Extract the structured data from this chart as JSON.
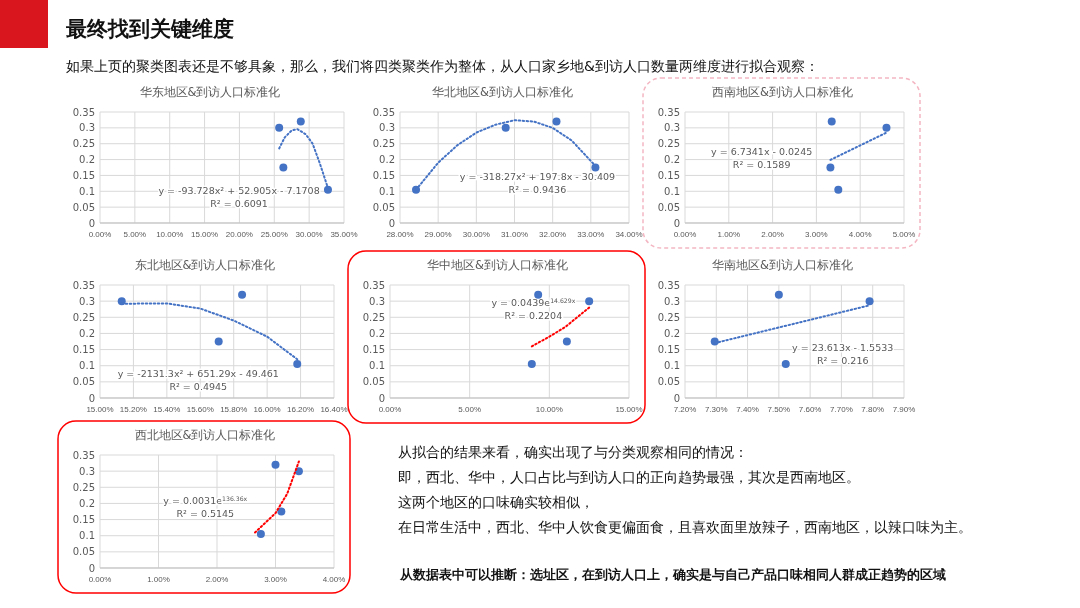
{
  "chart_data": [
    {
      "type": "other",
      "title": "最终找到关键维度",
      "subtitle": "如果上页的聚类图表还是不够具象，那么，我们将四类聚类作为整体，从人口家乡地&到访人口数量两维度进行拟合观察："
    },
    {
      "type": "scatter",
      "title": "华东地区&到访人口标准化",
      "grid": true,
      "series": [
        {
          "type": "scatter",
          "marker": "circle",
          "color": "#4472c4",
          "x": [
            25.7,
            26.3,
            28.8,
            32.7
          ],
          "values": [
            0.3,
            0.175,
            0.32,
            0.105
          ]
        },
        {
          "type": "line",
          "line_style": "dotted",
          "color": "#4472c4",
          "x": [
            25.7,
            26.5,
            27.5,
            28.3,
            29.5,
            30.5,
            31.5,
            32.7
          ],
          "values": [
            0.235,
            0.27,
            0.292,
            0.296,
            0.28,
            0.25,
            0.19,
            0.11
          ]
        }
      ],
      "xlim": [
        0,
        35
      ],
      "xticks": [
        {
          "value": 0,
          "label": "0.00%"
        },
        {
          "value": 5,
          "label": "5.00%"
        },
        {
          "value": 10,
          "label": "10.00%"
        },
        {
          "value": 15,
          "label": "15.00%"
        },
        {
          "value": 20,
          "label": "20.00%"
        },
        {
          "value": 25,
          "label": "25.00%"
        },
        {
          "value": 30,
          "label": "30.00%"
        },
        {
          "value": 35,
          "label": "35.00%"
        }
      ],
      "ylim": [
        0,
        0.35
      ],
      "yticks": [
        0,
        0.05,
        0.1,
        0.15,
        0.2,
        0.25,
        0.3,
        0.35
      ],
      "annotations": [
        "y = -93.728x² + 52.905x - 7.1708",
        "R² = 0.6091"
      ]
    },
    {
      "type": "scatter",
      "title": "华北地区&到访人口标准化",
      "grid": true,
      "series": [
        {
          "type": "scatter",
          "marker": "circle",
          "color": "#4472c4",
          "x": [
            28.42,
            30.77,
            32.1,
            33.12
          ],
          "values": [
            0.105,
            0.3,
            0.32,
            0.175
          ]
        },
        {
          "type": "line",
          "line_style": "dotted",
          "color": "#4472c4",
          "x": [
            28.42,
            29,
            29.5,
            30,
            30.5,
            31,
            31.5,
            32,
            32.5,
            33.12
          ],
          "values": [
            0.105,
            0.19,
            0.245,
            0.285,
            0.31,
            0.324,
            0.32,
            0.3,
            0.26,
            0.18
          ]
        }
      ],
      "xlim": [
        28,
        34
      ],
      "xticks": [
        {
          "value": 28,
          "label": "28.00%"
        },
        {
          "value": 29,
          "label": "29.00%"
        },
        {
          "value": 30,
          "label": "30.00%"
        },
        {
          "value": 31,
          "label": "31.00%"
        },
        {
          "value": 32,
          "label": "32.00%"
        },
        {
          "value": 33,
          "label": "33.00%"
        },
        {
          "value": 34,
          "label": "34.00%"
        }
      ],
      "ylim": [
        0,
        0.35
      ],
      "yticks": [
        0,
        0.05,
        0.1,
        0.15,
        0.2,
        0.25,
        0.3,
        0.35
      ],
      "annotations": [
        "y = -318.27x² + 197.8x - 30.409",
        "R² = 0.9436"
      ]
    },
    {
      "type": "scatter",
      "title": "西南地区&到访人口标准化",
      "grid": true,
      "series": [
        {
          "type": "scatter",
          "marker": "circle",
          "color": "#4472c4",
          "x": [
            3.35,
            3.32,
            3.5,
            4.6
          ],
          "values": [
            0.32,
            0.175,
            0.105,
            0.3
          ]
        },
        {
          "type": "line",
          "line_style": "dotted",
          "color": "#4472c4",
          "x": [
            3.32,
            4.6
          ],
          "values": [
            0.199,
            0.285
          ]
        }
      ],
      "xlim": [
        0,
        5
      ],
      "xticks": [
        {
          "value": 0,
          "label": "0.00%"
        },
        {
          "value": 1,
          "label": "1.00%"
        },
        {
          "value": 2,
          "label": "2.00%"
        },
        {
          "value": 3,
          "label": "3.00%"
        },
        {
          "value": 4,
          "label": "4.00%"
        },
        {
          "value": 5,
          "label": "5.00%"
        }
      ],
      "ylim": [
        0,
        0.35
      ],
      "yticks": [
        0,
        0.05,
        0.1,
        0.15,
        0.2,
        0.25,
        0.3,
        0.35
      ],
      "annotations": [
        "y = 6.7341x - 0.0245",
        "R² = 0.1589"
      ]
    },
    {
      "type": "scatter",
      "title": "东北地区&到访人口标准化",
      "grid": true,
      "series": [
        {
          "type": "scatter",
          "marker": "circle",
          "color": "#4472c4",
          "x": [
            15.13,
            15.71,
            15.85,
            16.18
          ],
          "values": [
            0.3,
            0.175,
            0.32,
            0.105
          ]
        },
        {
          "type": "line",
          "line_style": "dotted",
          "color": "#4472c4",
          "x": [
            15.13,
            15.4,
            15.6,
            15.8,
            16.0,
            16.18
          ],
          "values": [
            0.292,
            0.293,
            0.277,
            0.24,
            0.19,
            0.12
          ]
        }
      ],
      "xlim": [
        15,
        16.4
      ],
      "xticks": [
        {
          "value": 15,
          "label": "15.00%"
        },
        {
          "value": 15.2,
          "label": "15.20%"
        },
        {
          "value": 15.4,
          "label": "15.40%"
        },
        {
          "value": 15.6,
          "label": "15.60%"
        },
        {
          "value": 15.8,
          "label": "15.80%"
        },
        {
          "value": 16,
          "label": "16.00%"
        },
        {
          "value": 16.2,
          "label": "16.20%"
        },
        {
          "value": 16.4,
          "label": "16.40%"
        }
      ],
      "ylim": [
        0,
        0.35
      ],
      "yticks": [
        0,
        0.05,
        0.1,
        0.15,
        0.2,
        0.25,
        0.3,
        0.35
      ],
      "annotations": [
        "y = -2131.3x² + 651.29x - 49.461",
        "R² = 0.4945"
      ]
    },
    {
      "type": "scatter",
      "title": "华中地区&到访人口标准化",
      "grid": true,
      "series": [
        {
          "type": "scatter",
          "marker": "circle",
          "color": "#4472c4",
          "x": [
            8.9,
            9.3,
            11.1,
            12.5
          ],
          "values": [
            0.105,
            0.32,
            0.175,
            0.3
          ]
        },
        {
          "type": "line",
          "line_style": "dotted",
          "color": "#ff0000",
          "x": [
            8.9,
            10,
            11,
            12.5
          ],
          "values": [
            0.16,
            0.19,
            0.22,
            0.28
          ]
        }
      ],
      "xlim": [
        0,
        15
      ],
      "xticks": [
        {
          "value": 0,
          "label": "0.00%"
        },
        {
          "value": 5,
          "label": "5.00%"
        },
        {
          "value": 10,
          "label": "10.00%"
        },
        {
          "value": 15,
          "label": "15.00%"
        }
      ],
      "ylim": [
        0,
        0.35
      ],
      "yticks": [
        0,
        0.05,
        0.1,
        0.15,
        0.2,
        0.25,
        0.3,
        0.35
      ],
      "annotations": [
        "y = 0.0439e$^{14.629x}$",
        "R² = 0.2204"
      ]
    },
    {
      "type": "scatter",
      "title": "华南地区&到访人口标准化",
      "grid": true,
      "series": [
        {
          "type": "scatter",
          "marker": "circle",
          "color": "#4472c4",
          "x": [
            7.295,
            7.5,
            7.522,
            7.79
          ],
          "values": [
            0.175,
            0.32,
            0.105,
            0.3
          ]
        },
        {
          "type": "line",
          "line_style": "dotted",
          "color": "#4472c4",
          "x": [
            7.295,
            7.79
          ],
          "values": [
            0.17,
            0.287
          ]
        }
      ],
      "xlim": [
        7.2,
        7.9
      ],
      "xticks": [
        {
          "value": 7.2,
          "label": "7.20%"
        },
        {
          "value": 7.3,
          "label": "7.30%"
        },
        {
          "value": 7.4,
          "label": "7.40%"
        },
        {
          "value": 7.5,
          "label": "7.50%"
        },
        {
          "value": 7.6,
          "label": "7.60%"
        },
        {
          "value": 7.7,
          "label": "7.70%"
        },
        {
          "value": 7.8,
          "label": "7.80%"
        },
        {
          "value": 7.9,
          "label": "7.90%"
        }
      ],
      "ylim": [
        0,
        0.35
      ],
      "yticks": [
        0,
        0.05,
        0.1,
        0.15,
        0.2,
        0.25,
        0.3,
        0.35
      ],
      "annotations": [
        "y = 23.613x - 1.5533",
        "R² = 0.216"
      ]
    },
    {
      "type": "scatter",
      "title": "西北地区&到访人口标准化",
      "grid": true,
      "series": [
        {
          "type": "scatter",
          "marker": "circle",
          "color": "#4472c4",
          "x": [
            2.75,
            3.0,
            3.1,
            3.4
          ],
          "values": [
            0.105,
            0.32,
            0.175,
            0.3
          ]
        },
        {
          "type": "line",
          "line_style": "dotted",
          "color": "#ff0000",
          "x": [
            2.65,
            3.0,
            3.2,
            3.4
          ],
          "values": [
            0.11,
            0.17,
            0.23,
            0.33
          ]
        }
      ],
      "xlim": [
        0,
        4
      ],
      "xticks": [
        {
          "value": 0,
          "label": "0.00%"
        },
        {
          "value": 1,
          "label": "1.00%"
        },
        {
          "value": 2,
          "label": "2.00%"
        },
        {
          "value": 3,
          "label": "3.00%"
        },
        {
          "value": 4,
          "label": "4.00%"
        }
      ],
      "ylim": [
        0,
        0.35
      ],
      "yticks": [
        0,
        0.05,
        0.1,
        0.15,
        0.2,
        0.25,
        0.3,
        0.35
      ],
      "annotations": [
        "y = 0.0031e$^{136.36x}$",
        "R² = 0.5145"
      ]
    },
    {
      "type": "other",
      "annotations": [
        "从拟合的结果来看，确实出现了与分类观察相同的情况：",
        "即，西北、华中，人口占比与到访人口的正向趋势最强，其次是西南地区。",
        "这两个地区的口味确实较相似，",
        "在日常生活中，西北、华中人饮食更偏面食，且喜欢面里放辣子，西南地区，以辣口味为主。",
        "从数据表中可以推断：选址区，在到访人口上，确实是与自己产品口味相同人群成正趋势的区域"
      ]
    }
  ]
}
